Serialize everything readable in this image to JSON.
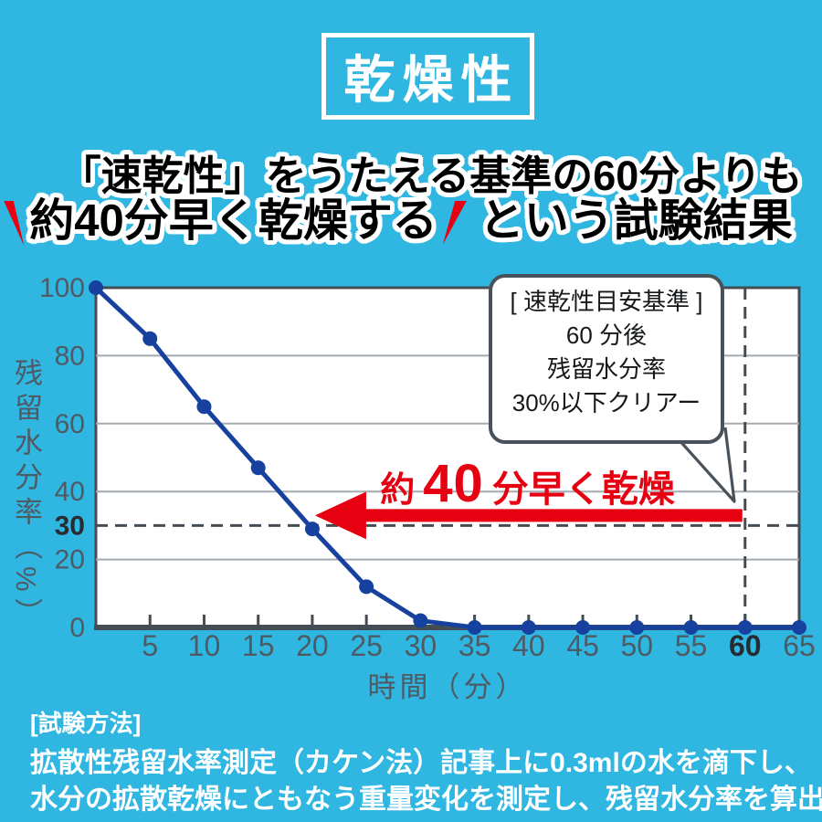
{
  "colors": {
    "background": "#2fb7e2",
    "accent_red": "#e60012",
    "line_blue": "#17419f",
    "axis_gray": "#4e5a64",
    "axis_dark": "#454d54",
    "grid_gray": "#a4abb0",
    "tick_bold": "#262c31"
  },
  "header": {
    "badge": "乾燥性",
    "line1": "「速乾性」をうたえる基準の60分よりも",
    "line2_emphasis": "約40分早く乾燥する",
    "line2_rest": "という試験結果"
  },
  "chart_data": {
    "type": "line",
    "x": [
      0,
      5,
      10,
      15,
      20,
      25,
      30,
      35,
      40,
      45,
      50,
      55,
      60,
      65
    ],
    "series": [
      {
        "name": "残留水分率",
        "values": [
          100,
          85,
          65,
          47,
          29,
          12,
          2,
          0,
          0,
          0,
          0,
          0,
          0,
          0
        ]
      }
    ],
    "xlabel": "時間（分）",
    "ylabel": "残留水分率（%）",
    "xlim": [
      0,
      65
    ],
    "ylim": [
      0,
      100
    ],
    "x_ticks": [
      5,
      10,
      15,
      20,
      25,
      30,
      35,
      40,
      45,
      50,
      55,
      60,
      65
    ],
    "y_ticks": [
      100,
      80,
      60,
      40,
      30,
      20,
      0
    ],
    "gridlines_y": [
      80,
      60,
      40,
      20
    ],
    "grid": true,
    "legend": false,
    "threshold": {
      "y": 30,
      "x": 60,
      "emphasized_y_tick": 30,
      "emphasized_x_tick": 60
    },
    "arrow": {
      "from_x": 60,
      "to_x": 20,
      "label_prefix": "約",
      "label_number": "40",
      "label_suffix": "分早く乾燥"
    }
  },
  "annotations": {
    "bubble": {
      "lines": [
        "[ 速乾性目安基準 ]",
        "60 分後",
        "残留水分率",
        "30%以下クリアー"
      ]
    }
  },
  "footer": {
    "lines": [
      "[試験方法]",
      "拡散性残留水率測定（カケン法）記事上に0.3mlの水を滴下し、",
      "水分の拡散乾燥にともなう重量変化を測定し、残留水分率を算出。"
    ]
  }
}
